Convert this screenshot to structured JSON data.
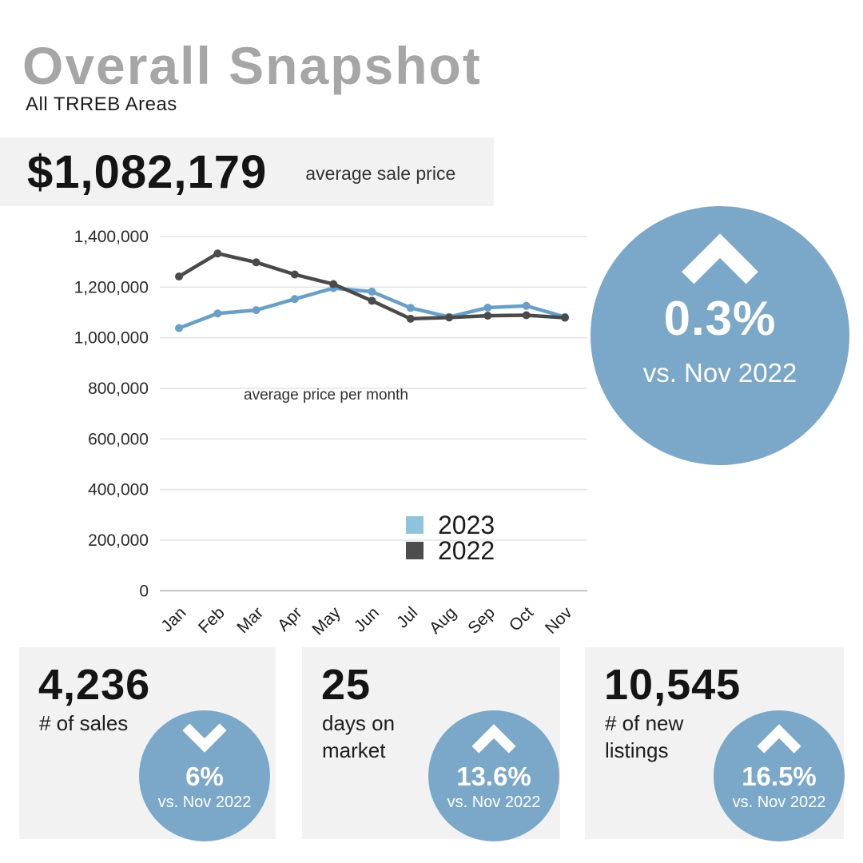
{
  "header": {
    "title": "Overall Snapshot",
    "subtitle": "All TRREB Areas"
  },
  "price_banner": {
    "value": "$1,082,179",
    "label": "average sale price"
  },
  "change_badge": {
    "direction": "up",
    "value": "0.3%",
    "comparison": "vs. Nov 2022"
  },
  "chart_data": {
    "type": "line",
    "title": "average price per month",
    "categories": [
      "Jan",
      "Feb",
      "Mar",
      "Apr",
      "May",
      "Jun",
      "Jul",
      "Aug",
      "Sep",
      "Oct",
      "Nov"
    ],
    "series": [
      {
        "name": "2023",
        "color": "#699fc7",
        "swatch": "#8fc3da",
        "values": [
          1038000,
          1096000,
          1109000,
          1153000,
          1196000,
          1182000,
          1118000,
          1082000,
          1119000,
          1126000,
          1082179
        ]
      },
      {
        "name": "2022",
        "color": "#4a4a4a",
        "swatch": "#4d4d4d",
        "values": [
          1242000,
          1333000,
          1298000,
          1250000,
          1212000,
          1146000,
          1075000,
          1080000,
          1087000,
          1089000,
          1079000
        ]
      }
    ],
    "ylabel": "",
    "xlabel": "",
    "ylim": [
      0,
      1400000
    ],
    "ytick_step": 200000,
    "ytick_labels": [
      "1,400,000",
      "1,200,000",
      "1,000,000",
      "800,000",
      "600,000",
      "400,000",
      "200,000",
      "0"
    ],
    "grid": true,
    "legend_position": "inside-center-right"
  },
  "stat_cards": [
    {
      "value": "4,236",
      "label": "# of sales",
      "badge": {
        "direction": "down",
        "value": "6%",
        "comparison": "vs. Nov 2022"
      }
    },
    {
      "value": "25",
      "label": "days on\nmarket",
      "badge": {
        "direction": "up",
        "value": "13.6%",
        "comparison": "vs. Nov 2022"
      }
    },
    {
      "value": "10,545",
      "label": "# of new\nlistings",
      "badge": {
        "direction": "up",
        "value": "16.5%",
        "comparison": "vs. Nov 2022"
      }
    }
  ],
  "colors": {
    "accent_blue": "#7ba7c8",
    "card_background": "#f2f2f2",
    "title_gray": "#a6a6a6",
    "grid_line": "#e3e3e3",
    "axis_line": "#c4c4c4",
    "text_dark": "#1d1d1d"
  }
}
